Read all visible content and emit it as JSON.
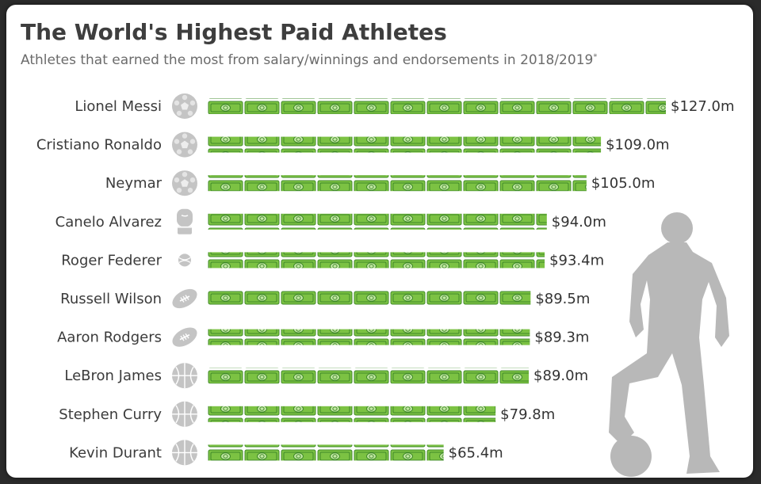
{
  "header": {
    "title": "The World's Highest Paid Athletes",
    "subtitle": "Athletes that earned the most from salary/winnings and endorsements in 2018/2019",
    "subtitle_mark": "*"
  },
  "colors": {
    "bill_fill": "#7cc243",
    "bill_dark": "#3f8a2a",
    "bill_light": "#c4e8a4",
    "icon_gray": "#c4c4c4",
    "silhouette": "#b8b8b8"
  },
  "chart_data": {
    "type": "bar",
    "unit": "$ million",
    "categories": [
      "Lionel Messi",
      "Cristiano Ronaldo",
      "Neymar",
      "Canelo Alvarez",
      "Roger Federer",
      "Russell Wilson",
      "Aaron Rodgers",
      "LeBron James",
      "Stephen Curry",
      "Kevin Durant"
    ],
    "values": [
      127.0,
      109.0,
      105.0,
      94.0,
      93.4,
      89.5,
      89.3,
      89.0,
      79.8,
      65.4
    ],
    "value_labels": [
      "$127.0m",
      "$109.0m",
      "$105.0m",
      "$94.0m",
      "$93.4m",
      "$89.5m",
      "$89.3m",
      "$89.0m",
      "$79.8m",
      "$65.4m"
    ],
    "sport_icons": [
      "soccer-ball-icon",
      "soccer-ball-icon",
      "soccer-ball-icon",
      "boxing-glove-icon",
      "tennis-ball-icon",
      "american-football-icon",
      "american-football-icon",
      "basketball-icon",
      "basketball-icon",
      "basketball-icon"
    ],
    "xlim": [
      0,
      127.0
    ]
  }
}
